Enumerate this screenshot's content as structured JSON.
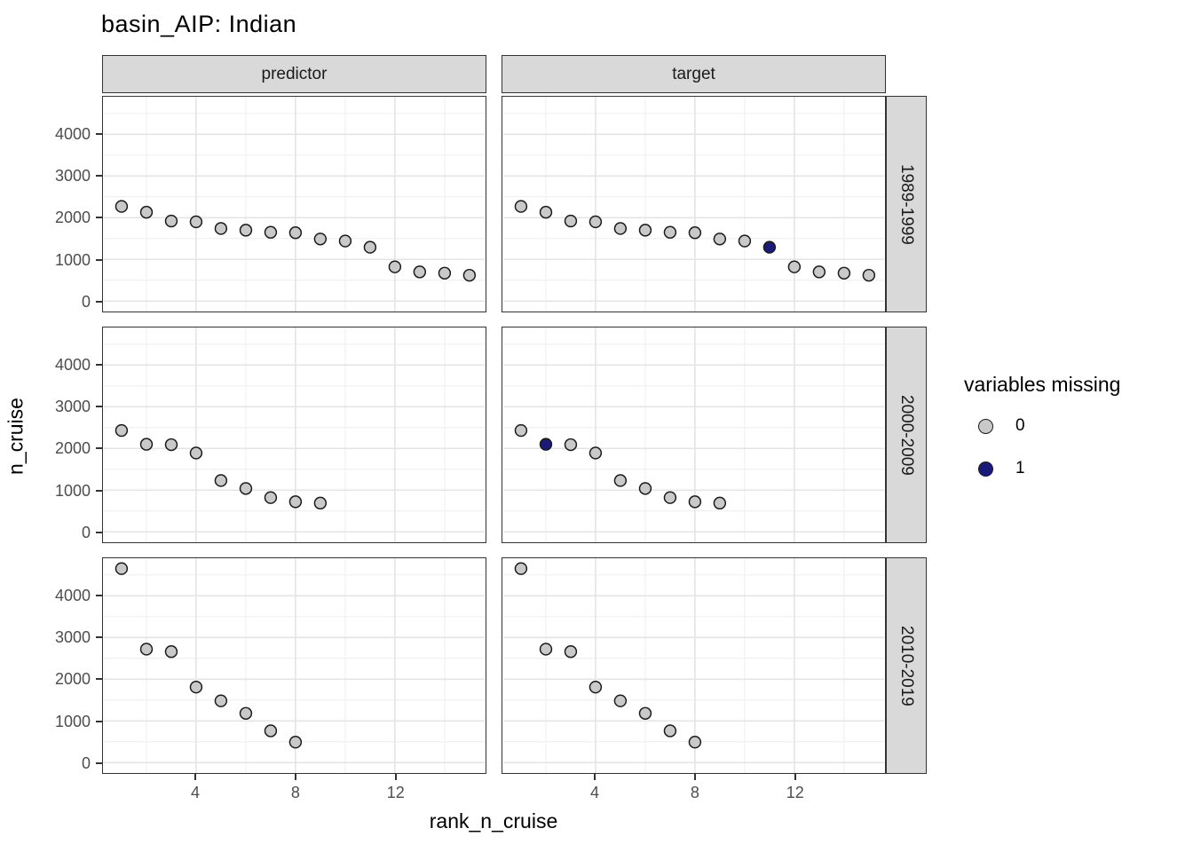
{
  "title": "basin_AIP: Indian",
  "colors": {
    "point_fill_0": "#c9c9c9",
    "point_fill_1": "#1a1a7d",
    "point_stroke": "#1a1a1a",
    "strip_background": "#d9d9d9",
    "panel_border": "#333333",
    "grid_major": "#e4e4e4",
    "grid_minor": "#f1f1f1",
    "tick_text": "#4d4d4d"
  },
  "chart_data": {
    "type": "scatter",
    "title": "basin_AIP: Indian",
    "xlabel": "rank_n_cruise",
    "ylabel": "n_cruise",
    "xlim": [
      0.28,
      15.62
    ],
    "ylim": [
      -250,
      4900
    ],
    "x_ticks": [
      4,
      8,
      12
    ],
    "y_ticks": [
      0,
      1000,
      2000,
      3000,
      4000
    ],
    "x_minor": [
      2,
      6,
      10,
      14
    ],
    "y_minor": [
      500,
      1500,
      2500,
      3500,
      4500
    ],
    "grid": true,
    "col_facets": [
      "predictor",
      "target"
    ],
    "row_facets": [
      "1989-1999",
      "2000-2009",
      "2010-2019"
    ],
    "legend": {
      "title": "variables missing",
      "position": "right",
      "entries": [
        {
          "label": "0",
          "fill": "#c9c9c9"
        },
        {
          "label": "1",
          "fill": "#1a1a7d"
        }
      ]
    },
    "point_format": [
      "rank_n_cruise",
      "n_cruise",
      "variables_missing"
    ],
    "panels": [
      {
        "facet_col": "predictor",
        "facet_row": "1989-1999",
        "points": [
          [
            1,
            2270,
            0
          ],
          [
            2,
            2130,
            0
          ],
          [
            3,
            1920,
            0
          ],
          [
            4,
            1900,
            0
          ],
          [
            5,
            1740,
            0
          ],
          [
            6,
            1700,
            0
          ],
          [
            7,
            1650,
            0
          ],
          [
            8,
            1640,
            0
          ],
          [
            9,
            1490,
            0
          ],
          [
            10,
            1440,
            0
          ],
          [
            11,
            1290,
            0
          ],
          [
            12,
            820,
            0
          ],
          [
            13,
            700,
            0
          ],
          [
            14,
            670,
            0
          ],
          [
            15,
            620,
            0
          ]
        ]
      },
      {
        "facet_col": "target",
        "facet_row": "1989-1999",
        "points": [
          [
            1,
            2270,
            0
          ],
          [
            2,
            2130,
            0
          ],
          [
            3,
            1920,
            0
          ],
          [
            4,
            1900,
            0
          ],
          [
            5,
            1740,
            0
          ],
          [
            6,
            1700,
            0
          ],
          [
            7,
            1650,
            0
          ],
          [
            8,
            1640,
            0
          ],
          [
            9,
            1490,
            0
          ],
          [
            10,
            1440,
            0
          ],
          [
            11,
            1290,
            1
          ],
          [
            12,
            820,
            0
          ],
          [
            13,
            700,
            0
          ],
          [
            14,
            670,
            0
          ],
          [
            15,
            620,
            0
          ]
        ]
      },
      {
        "facet_col": "predictor",
        "facet_row": "2000-2009",
        "points": [
          [
            1,
            2430,
            0
          ],
          [
            2,
            2100,
            0
          ],
          [
            3,
            2090,
            0
          ],
          [
            4,
            1890,
            0
          ],
          [
            5,
            1230,
            0
          ],
          [
            6,
            1040,
            0
          ],
          [
            7,
            820,
            0
          ],
          [
            8,
            720,
            0
          ],
          [
            9,
            690,
            0
          ]
        ]
      },
      {
        "facet_col": "target",
        "facet_row": "2000-2009",
        "points": [
          [
            1,
            2430,
            0
          ],
          [
            2,
            2100,
            1
          ],
          [
            3,
            2090,
            0
          ],
          [
            4,
            1890,
            0
          ],
          [
            5,
            1230,
            0
          ],
          [
            6,
            1040,
            0
          ],
          [
            7,
            820,
            0
          ],
          [
            8,
            720,
            0
          ],
          [
            9,
            690,
            0
          ]
        ]
      },
      {
        "facet_col": "predictor",
        "facet_row": "2010-2019",
        "points": [
          [
            1,
            4650,
            0
          ],
          [
            2,
            2720,
            0
          ],
          [
            3,
            2660,
            0
          ],
          [
            4,
            1810,
            0
          ],
          [
            5,
            1480,
            0
          ],
          [
            6,
            1180,
            0
          ],
          [
            7,
            760,
            0
          ],
          [
            8,
            490,
            0
          ]
        ]
      },
      {
        "facet_col": "target",
        "facet_row": "2010-2019",
        "points": [
          [
            1,
            4650,
            0
          ],
          [
            2,
            2720,
            0
          ],
          [
            3,
            2660,
            0
          ],
          [
            4,
            1810,
            0
          ],
          [
            5,
            1480,
            0
          ],
          [
            6,
            1180,
            0
          ],
          [
            7,
            760,
            0
          ],
          [
            8,
            490,
            0
          ]
        ]
      }
    ]
  }
}
